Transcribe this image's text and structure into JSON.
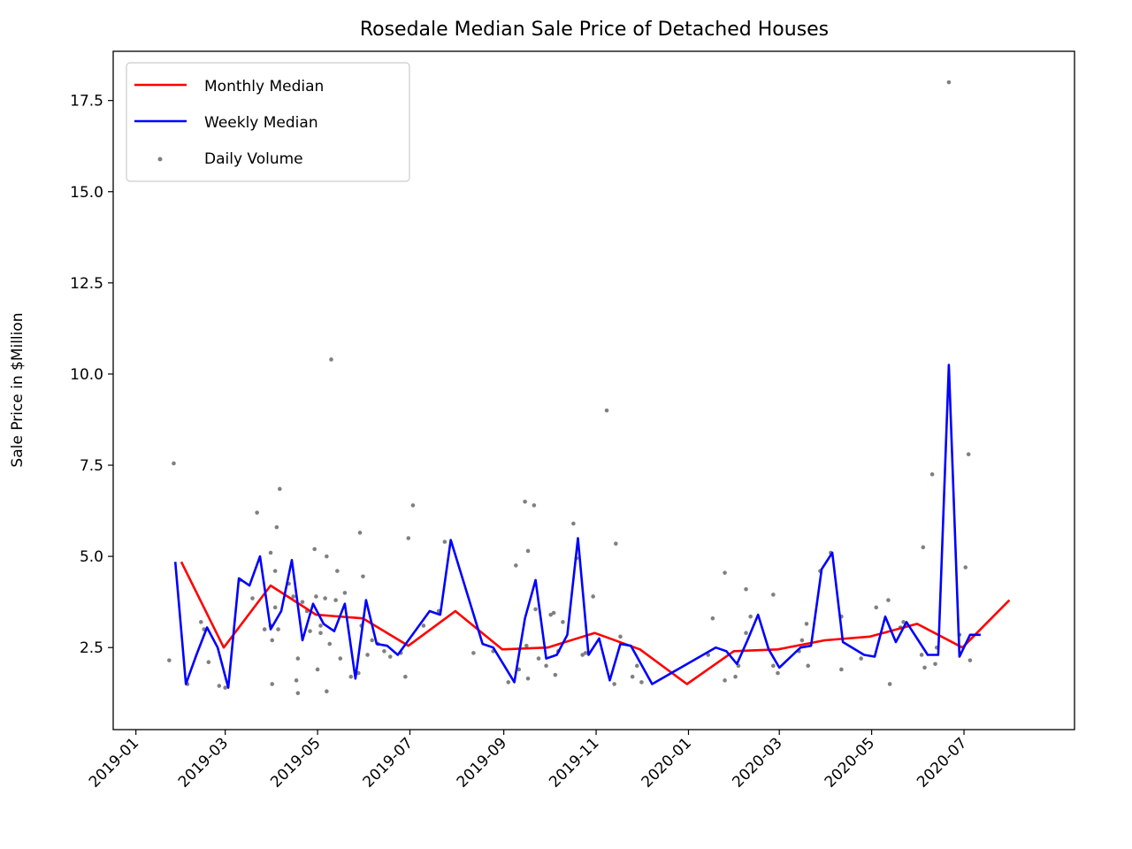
{
  "chart_data": {
    "type": "line",
    "title": "Rosedale Median Sale Price of Detached Houses",
    "xlabel": "",
    "ylabel": "Sale Price in $Million",
    "xlim": [
      "2018-12-17",
      "2020-09-12"
    ],
    "ylim": [
      0.25,
      18.85
    ],
    "grid": false,
    "legend_position": "top-left",
    "x_ticks": [
      "2019-01",
      "2019-03",
      "2019-05",
      "2019-07",
      "2019-09",
      "2019-11",
      "2020-01",
      "2020-03",
      "2020-05",
      "2020-07"
    ],
    "y_ticks": [
      2.5,
      5.0,
      7.5,
      10.0,
      12.5,
      15.0,
      17.5
    ],
    "colors": {
      "monthly": "#ff0000",
      "weekly": "#0000ff",
      "daily": "#808080"
    },
    "series": [
      {
        "name": "Monthly Median",
        "kind": "line",
        "points": [
          [
            "2019-01-31",
            4.85
          ],
          [
            "2019-02-28",
            2.5
          ],
          [
            "2019-03-31",
            4.2
          ],
          [
            "2019-04-30",
            3.4
          ],
          [
            "2019-05-31",
            3.3
          ],
          [
            "2019-06-30",
            2.55
          ],
          [
            "2019-07-31",
            3.5
          ],
          [
            "2019-08-31",
            2.45
          ],
          [
            "2019-09-30",
            2.5
          ],
          [
            "2019-10-31",
            2.9
          ],
          [
            "2019-11-30",
            2.45
          ],
          [
            "2019-12-31",
            1.5
          ],
          [
            "2020-01-31",
            2.4
          ],
          [
            "2020-02-29",
            2.45
          ],
          [
            "2020-03-31",
            2.7
          ],
          [
            "2020-04-30",
            2.8
          ],
          [
            "2020-05-31",
            3.15
          ],
          [
            "2020-06-30",
            2.5
          ],
          [
            "2020-07-31",
            3.8
          ]
        ]
      },
      {
        "name": "Weekly Median",
        "kind": "line",
        "points": [
          [
            "2019-01-27",
            4.85
          ],
          [
            "2019-02-03",
            1.5
          ],
          [
            "2019-02-10",
            2.3
          ],
          [
            "2019-02-17",
            3.05
          ],
          [
            "2019-02-24",
            2.5
          ],
          [
            "2019-03-03",
            1.4
          ],
          [
            "2019-03-10",
            4.4
          ],
          [
            "2019-03-17",
            4.2
          ],
          [
            "2019-03-24",
            5.0
          ],
          [
            "2019-03-31",
            3.0
          ],
          [
            "2019-04-07",
            3.5
          ],
          [
            "2019-04-14",
            4.9
          ],
          [
            "2019-04-21",
            2.7
          ],
          [
            "2019-04-28",
            3.7
          ],
          [
            "2019-05-05",
            3.15
          ],
          [
            "2019-05-12",
            2.95
          ],
          [
            "2019-05-19",
            3.7
          ],
          [
            "2019-05-26",
            1.65
          ],
          [
            "2019-06-02",
            3.8
          ],
          [
            "2019-06-09",
            2.6
          ],
          [
            "2019-06-16",
            2.55
          ],
          [
            "2019-06-23",
            2.3
          ],
          [
            "2019-06-30",
            2.7
          ],
          [
            "2019-07-14",
            3.5
          ],
          [
            "2019-07-21",
            3.4
          ],
          [
            "2019-07-28",
            5.45
          ],
          [
            "2019-08-18",
            2.6
          ],
          [
            "2019-08-25",
            2.5
          ],
          [
            "2019-09-08",
            1.55
          ],
          [
            "2019-09-15",
            3.3
          ],
          [
            "2019-09-22",
            4.35
          ],
          [
            "2019-09-29",
            2.2
          ],
          [
            "2019-10-06",
            2.3
          ],
          [
            "2019-10-13",
            2.85
          ],
          [
            "2019-10-20",
            5.5
          ],
          [
            "2019-10-27",
            2.3
          ],
          [
            "2019-11-03",
            2.75
          ],
          [
            "2019-11-10",
            1.6
          ],
          [
            "2019-11-17",
            2.6
          ],
          [
            "2019-11-24",
            2.55
          ],
          [
            "2019-12-08",
            1.5
          ],
          [
            "2020-01-19",
            2.5
          ],
          [
            "2020-01-26",
            2.4
          ],
          [
            "2020-02-02",
            2.05
          ],
          [
            "2020-02-09",
            2.7
          ],
          [
            "2020-02-16",
            3.4
          ],
          [
            "2020-02-23",
            2.45
          ],
          [
            "2020-03-01",
            1.95
          ],
          [
            "2020-03-15",
            2.5
          ],
          [
            "2020-03-22",
            2.55
          ],
          [
            "2020-03-29",
            4.65
          ],
          [
            "2020-04-05",
            5.1
          ],
          [
            "2020-04-12",
            2.65
          ],
          [
            "2020-04-26",
            2.3
          ],
          [
            "2020-05-03",
            2.25
          ],
          [
            "2020-05-10",
            3.35
          ],
          [
            "2020-05-17",
            2.65
          ],
          [
            "2020-05-24",
            3.2
          ],
          [
            "2020-06-07",
            2.3
          ],
          [
            "2020-06-14",
            2.3
          ],
          [
            "2020-06-21",
            10.25
          ],
          [
            "2020-06-28",
            2.25
          ],
          [
            "2020-07-05",
            2.85
          ],
          [
            "2020-07-12",
            2.85
          ]
        ]
      },
      {
        "name": "Daily Volume",
        "kind": "scatter",
        "points": [
          [
            "2019-01-23",
            2.15
          ],
          [
            "2019-01-26",
            7.55
          ],
          [
            "2019-02-04",
            1.5
          ],
          [
            "2019-02-13",
            3.2
          ],
          [
            "2019-02-15",
            3.0
          ],
          [
            "2019-02-18",
            2.1
          ],
          [
            "2019-02-25",
            1.45
          ],
          [
            "2019-03-01",
            1.4
          ],
          [
            "2019-03-11",
            4.35
          ],
          [
            "2019-03-19",
            3.85
          ],
          [
            "2019-03-22",
            6.2
          ],
          [
            "2019-03-27",
            3.0
          ],
          [
            "2019-03-31",
            5.1
          ],
          [
            "2019-03-31",
            3.1
          ],
          [
            "2019-04-01",
            1.5
          ],
          [
            "2019-04-01",
            2.7
          ],
          [
            "2019-04-03",
            3.6
          ],
          [
            "2019-04-04",
            5.8
          ],
          [
            "2019-04-06",
            6.85
          ],
          [
            "2019-04-05",
            3.0
          ],
          [
            "2019-04-03",
            4.6
          ],
          [
            "2019-04-12",
            4.25
          ],
          [
            "2019-04-15",
            3.9
          ],
          [
            "2019-04-17",
            1.6
          ],
          [
            "2019-04-18",
            2.2
          ],
          [
            "2019-04-18",
            1.25
          ],
          [
            "2019-04-21",
            3.75
          ],
          [
            "2019-04-24",
            3.5
          ],
          [
            "2019-04-26",
            2.95
          ],
          [
            "2019-04-29",
            5.2
          ],
          [
            "2019-04-30",
            3.9
          ],
          [
            "2019-05-01",
            1.9
          ],
          [
            "2019-05-03",
            2.9
          ],
          [
            "2019-05-03",
            3.1
          ],
          [
            "2019-05-06",
            3.85
          ],
          [
            "2019-05-07",
            1.3
          ],
          [
            "2019-05-07",
            5.0
          ],
          [
            "2019-05-09",
            2.6
          ],
          [
            "2019-05-10",
            10.4
          ],
          [
            "2019-05-13",
            3.8
          ],
          [
            "2019-05-14",
            4.6
          ],
          [
            "2019-05-16",
            2.2
          ],
          [
            "2019-05-19",
            4.0
          ],
          [
            "2019-05-23",
            1.7
          ],
          [
            "2019-05-28",
            1.8
          ],
          [
            "2019-05-29",
            5.65
          ],
          [
            "2019-05-31",
            4.45
          ],
          [
            "2019-05-30",
            3.1
          ],
          [
            "2019-06-03",
            2.3
          ],
          [
            "2019-06-06",
            2.7
          ],
          [
            "2019-06-10",
            2.6
          ],
          [
            "2019-06-14",
            2.4
          ],
          [
            "2019-06-18",
            2.25
          ],
          [
            "2019-06-25",
            2.35
          ],
          [
            "2019-06-28",
            1.7
          ],
          [
            "2019-06-30",
            5.5
          ],
          [
            "2019-07-03",
            6.4
          ],
          [
            "2019-07-10",
            3.1
          ],
          [
            "2019-07-20",
            3.5
          ],
          [
            "2019-07-24",
            5.4
          ],
          [
            "2019-08-12",
            2.35
          ],
          [
            "2019-08-25",
            2.4
          ],
          [
            "2019-09-04",
            1.55
          ],
          [
            "2019-09-09",
            4.75
          ],
          [
            "2019-09-11",
            1.9
          ],
          [
            "2019-09-15",
            6.5
          ],
          [
            "2019-09-17",
            5.15
          ],
          [
            "2019-09-16",
            2.55
          ],
          [
            "2019-09-17",
            1.65
          ],
          [
            "2019-09-21",
            6.4
          ],
          [
            "2019-09-22",
            3.55
          ],
          [
            "2019-09-24",
            2.2
          ],
          [
            "2019-09-29",
            2.0
          ],
          [
            "2019-10-02",
            3.4
          ],
          [
            "2019-10-04",
            3.45
          ],
          [
            "2019-10-05",
            1.75
          ],
          [
            "2019-10-07",
            2.4
          ],
          [
            "2019-10-10",
            3.2
          ],
          [
            "2019-10-17",
            5.9
          ],
          [
            "2019-10-19",
            4.95
          ],
          [
            "2019-10-23",
            2.3
          ],
          [
            "2019-10-25",
            2.35
          ],
          [
            "2019-10-30",
            3.9
          ],
          [
            "2019-11-08",
            9.0
          ],
          [
            "2019-11-13",
            1.5
          ],
          [
            "2019-11-14",
            5.35
          ],
          [
            "2019-11-17",
            2.8
          ],
          [
            "2019-11-25",
            1.7
          ],
          [
            "2019-11-28",
            2.0
          ],
          [
            "2019-12-01",
            1.55
          ],
          [
            "2020-01-14",
            2.3
          ],
          [
            "2020-01-17",
            3.3
          ],
          [
            "2020-01-25",
            4.55
          ],
          [
            "2020-01-25",
            1.6
          ],
          [
            "2020-02-01",
            1.7
          ],
          [
            "2020-02-03",
            2.0
          ],
          [
            "2020-02-08",
            4.1
          ],
          [
            "2020-02-08",
            2.9
          ],
          [
            "2020-02-11",
            3.35
          ],
          [
            "2020-02-26",
            3.95
          ],
          [
            "2020-02-26",
            2.0
          ],
          [
            "2020-02-29",
            1.8
          ],
          [
            "2020-03-14",
            2.4
          ],
          [
            "2020-03-16",
            2.7
          ],
          [
            "2020-03-19",
            3.15
          ],
          [
            "2020-03-20",
            2.0
          ],
          [
            "2020-03-28",
            4.6
          ],
          [
            "2020-04-04",
            5.1
          ],
          [
            "2020-04-11",
            3.35
          ],
          [
            "2020-04-11",
            1.9
          ],
          [
            "2020-04-24",
            2.2
          ],
          [
            "2020-05-04",
            3.6
          ],
          [
            "2020-05-12",
            3.8
          ],
          [
            "2020-05-13",
            1.5
          ],
          [
            "2020-05-20",
            3.05
          ],
          [
            "2020-05-22",
            3.2
          ],
          [
            "2020-06-03",
            2.3
          ],
          [
            "2020-06-04",
            5.25
          ],
          [
            "2020-06-05",
            1.95
          ],
          [
            "2020-06-10",
            7.25
          ],
          [
            "2020-06-12",
            2.05
          ],
          [
            "2020-06-13",
            2.5
          ],
          [
            "2020-06-21",
            18.0
          ],
          [
            "2020-06-28",
            2.85
          ],
          [
            "2020-07-02",
            4.7
          ],
          [
            "2020-07-04",
            7.8
          ],
          [
            "2020-07-05",
            2.15
          ]
        ]
      }
    ]
  }
}
